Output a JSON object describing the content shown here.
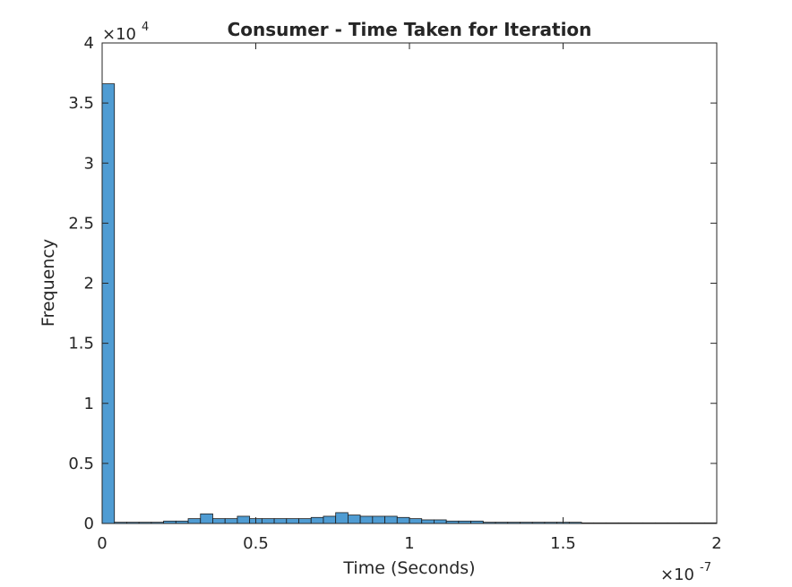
{
  "chart_data": {
    "type": "bar",
    "title": "Consumer - Time Taken for Iteration",
    "xlabel": "Time (Seconds)",
    "ylabel": "Frequency",
    "x_exponent": "×10",
    "x_exponent_power": "-7",
    "y_exponent": "×10",
    "y_exponent_power": "4",
    "xlim": [
      0,
      2
    ],
    "ylim": [
      0,
      4
    ],
    "x_units_multiplier": 1e-07,
    "y_units_multiplier": 10000,
    "xticks": [
      0,
      0.5,
      1,
      1.5,
      2
    ],
    "xtick_labels": [
      "0",
      "0.5",
      "1",
      "1.5",
      "2"
    ],
    "yticks": [
      0,
      0.5,
      1,
      1.5,
      2,
      2.5,
      3,
      3.5,
      4
    ],
    "ytick_labels": [
      "0",
      "0.5",
      "1",
      "1.5",
      "2",
      "2.5",
      "3",
      "3.5",
      "4"
    ],
    "bin_width": 0.04,
    "bin_start": 0,
    "values": [
      3.66,
      0.01,
      0.01,
      0.01,
      0.01,
      0.02,
      0.02,
      0.04,
      0.08,
      0.04,
      0.04,
      0.06,
      0.04,
      0.04,
      0.04,
      0.04,
      0.04,
      0.05,
      0.06,
      0.09,
      0.07,
      0.06,
      0.06,
      0.06,
      0.05,
      0.04,
      0.03,
      0.03,
      0.02,
      0.02,
      0.02,
      0.01,
      0.01,
      0.01,
      0.01,
      0.01,
      0.01,
      0.01,
      0.01,
      0.005,
      0.005,
      0.005,
      0.005,
      0.005,
      0.005,
      0.005,
      0.005,
      0.005,
      0.005,
      0.005
    ],
    "bar_color": "#4f9cd3",
    "bar_edge_color": "#1a1a1a",
    "grid": false,
    "legend": "none"
  }
}
